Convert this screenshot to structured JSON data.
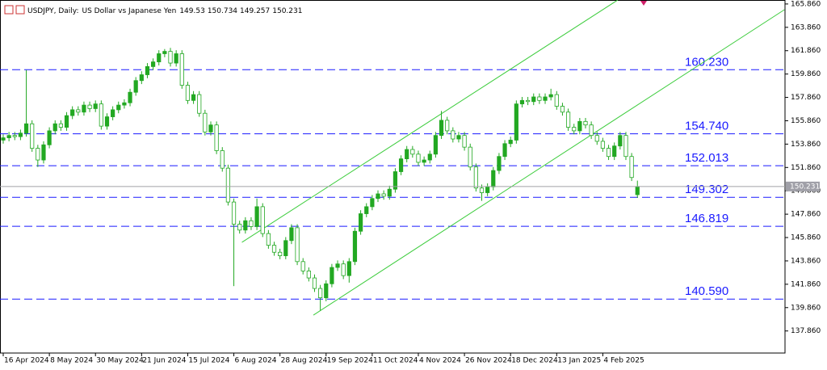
{
  "chart_data": {
    "type": "candlestick",
    "symbol": "USDJPY, Daily:",
    "description": "US Dollar vs Japanese Yen",
    "color": "#22a822",
    "level_color": "#1a1aff",
    "channel_color": "#3ccc3c",
    "price_line_color": "#a0a0a8",
    "xlim": [
      -0.56,
      135.6
    ],
    "ylim": [
      135.97,
      166.2
    ],
    "xticks": [
      {
        "value": 0,
        "label": "16 Apr 2024"
      },
      {
        "value": 8,
        "label": "8 May 2024"
      },
      {
        "value": 16,
        "label": "30 May 2024"
      },
      {
        "value": 24,
        "label": "21 Jun 2024"
      },
      {
        "value": 32,
        "label": "15 Jul 2024"
      },
      {
        "value": 40,
        "label": "6 Aug 2024"
      },
      {
        "value": 48,
        "label": "28 Aug 2024"
      },
      {
        "value": 56,
        "label": "19 Sep 2024"
      },
      {
        "value": 64,
        "label": "11 Oct 2024"
      },
      {
        "value": 72,
        "label": "4 Nov 2024"
      },
      {
        "value": 80,
        "label": "26 Nov 2024"
      },
      {
        "value": 88,
        "label": "18 Dec 2024"
      },
      {
        "value": 96,
        "label": "13 Jan 2025"
      },
      {
        "value": 104,
        "label": "4 Feb 2025"
      }
    ],
    "yticks": [
      {
        "value": 165.86,
        "label": "165.860"
      },
      {
        "value": 163.86,
        "label": "163.860"
      },
      {
        "value": 161.86,
        "label": "161.860"
      },
      {
        "value": 159.86,
        "label": "159.860"
      },
      {
        "value": 157.86,
        "label": "157.860"
      },
      {
        "value": 155.86,
        "label": "155.860"
      },
      {
        "value": 153.86,
        "label": "153.860"
      },
      {
        "value": 151.86,
        "label": "151.860"
      },
      {
        "value": 149.86,
        "label": "149.860"
      },
      {
        "value": 147.86,
        "label": "147.860"
      },
      {
        "value": 145.86,
        "label": "145.860"
      },
      {
        "value": 143.86,
        "label": "143.860"
      },
      {
        "value": 141.86,
        "label": "141.860"
      },
      {
        "value": 139.86,
        "label": "139.860"
      },
      {
        "value": 137.86,
        "label": "137.860"
      }
    ],
    "levels": [
      {
        "value": 160.23,
        "label": "160.230"
      },
      {
        "value": 154.74,
        "label": "154.740"
      },
      152.013,
      149.302,
      146.819,
      {
        "value": 140.59,
        "label": "140.590"
      }
    ],
    "channels": [
      {
        "x": [
          41.4,
          106.6
        ],
        "y": [
          145.45,
          166.2
        ]
      },
      {
        "x": [
          53.8,
          135.5
        ],
        "y": [
          139.22,
          165.37
        ]
      }
    ],
    "open": [
      154.2,
      154.4,
      154.6,
      154.5,
      154.8,
      155.6,
      153.5,
      152.5,
      153.8,
      155.0,
      155.6,
      155.3,
      156.3,
      156.8,
      156.6,
      157.2,
      156.9,
      157.3,
      155.4,
      156.2,
      156.8,
      157.2,
      157.4,
      158.3,
      159.3,
      159.8,
      160.5,
      160.9,
      161.6,
      161.8,
      160.8,
      161.6,
      158.9,
      157.6,
      158.1,
      156.5,
      154.9,
      155.5,
      153.3,
      151.8,
      148.9,
      147.0,
      146.5,
      147.3,
      146.8,
      148.5,
      146.2,
      145.2,
      144.6,
      144.3,
      145.6,
      146.7,
      143.8,
      143.0,
      142.4,
      141.5,
      140.7,
      141.9,
      143.3,
      143.6,
      142.6,
      143.8,
      146.4,
      147.9,
      148.5,
      149.2,
      149.6,
      149.4,
      150.0,
      151.5,
      152.6,
      153.4,
      153.0,
      152.3,
      152.5,
      153.0,
      154.6,
      155.9,
      155.0,
      154.3,
      154.6,
      153.6,
      151.9,
      150.1,
      149.7,
      150.2,
      151.6,
      152.8,
      153.9,
      154.2,
      157.3,
      157.6,
      157.5,
      157.9,
      157.6,
      157.9,
      158.1,
      157.1,
      156.6,
      155.3,
      155.0,
      155.8,
      155.5,
      154.6,
      154.1,
      153.5,
      152.8,
      153.7,
      154.6,
      152.8,
      149.53
    ],
    "high": [
      154.7,
      154.9,
      154.9,
      155.1,
      160.2,
      155.9,
      153.8,
      154.1,
      155.3,
      155.9,
      155.9,
      156.6,
      157.1,
      157.1,
      157.5,
      157.5,
      157.6,
      157.6,
      156.5,
      157.1,
      157.5,
      157.7,
      158.6,
      159.6,
      160.1,
      160.8,
      161.2,
      161.9,
      162.0,
      162.1,
      161.9,
      161.9,
      159.2,
      158.4,
      158.4,
      156.8,
      155.8,
      155.8,
      153.6,
      152.1,
      149.2,
      147.3,
      147.6,
      147.6,
      149.2,
      148.8,
      146.5,
      145.5,
      144.9,
      145.9,
      147.0,
      147.0,
      144.1,
      143.3,
      142.7,
      141.8,
      142.2,
      143.6,
      143.9,
      143.9,
      144.1,
      146.7,
      148.2,
      148.8,
      149.5,
      149.9,
      149.9,
      150.3,
      151.8,
      152.9,
      153.7,
      153.7,
      153.3,
      152.8,
      153.3,
      154.9,
      156.7,
      156.2,
      155.3,
      154.9,
      154.9,
      153.9,
      152.2,
      150.4,
      150.5,
      151.9,
      153.1,
      154.2,
      154.5,
      157.6,
      157.9,
      157.9,
      158.2,
      158.2,
      158.2,
      158.6,
      158.4,
      157.4,
      156.9,
      155.6,
      156.1,
      156.1,
      155.8,
      154.9,
      154.4,
      153.8,
      154.0,
      154.9,
      154.9,
      153.1,
      150.734
    ],
    "low": [
      153.9,
      154.1,
      154.2,
      154.2,
      154.5,
      153.2,
      151.9,
      152.2,
      153.5,
      154.7,
      155.0,
      155.0,
      156.0,
      156.3,
      156.3,
      156.6,
      156.6,
      155.1,
      155.1,
      155.9,
      156.5,
      156.9,
      157.1,
      158.0,
      159.0,
      159.5,
      160.2,
      160.6,
      161.3,
      160.5,
      160.5,
      158.6,
      157.3,
      157.3,
      156.2,
      154.6,
      154.6,
      153.0,
      151.5,
      148.6,
      141.7,
      146.2,
      146.2,
      146.5,
      146.5,
      145.9,
      144.9,
      144.3,
      144.0,
      144.0,
      145.3,
      143.5,
      142.7,
      142.1,
      141.2,
      139.6,
      140.4,
      141.6,
      143.0,
      142.3,
      142.0,
      143.5,
      146.1,
      147.6,
      148.2,
      148.9,
      149.1,
      149.1,
      149.7,
      151.2,
      152.3,
      152.7,
      152.0,
      152.0,
      152.2,
      152.7,
      154.3,
      154.7,
      154.0,
      154.0,
      153.3,
      151.6,
      149.8,
      149.0,
      149.4,
      149.9,
      151.3,
      152.5,
      153.6,
      153.9,
      157.0,
      157.2,
      157.2,
      157.3,
      157.3,
      157.6,
      156.8,
      156.3,
      155.0,
      154.7,
      154.7,
      155.2,
      154.3,
      153.8,
      153.2,
      152.5,
      152.5,
      153.4,
      152.5,
      150.7,
      149.257
    ],
    "close": [
      154.4,
      154.6,
      154.5,
      154.8,
      155.6,
      153.5,
      152.5,
      153.8,
      155.0,
      155.6,
      155.3,
      156.3,
      156.8,
      156.6,
      157.2,
      156.9,
      157.3,
      155.4,
      156.2,
      156.8,
      157.2,
      157.4,
      158.3,
      159.3,
      159.8,
      160.5,
      160.9,
      161.6,
      161.8,
      160.8,
      161.6,
      158.9,
      157.6,
      158.1,
      156.5,
      154.9,
      155.5,
      153.3,
      151.8,
      148.9,
      147.0,
      146.5,
      147.3,
      146.8,
      148.5,
      146.2,
      145.2,
      144.6,
      144.3,
      145.6,
      146.7,
      143.8,
      143.0,
      142.4,
      141.5,
      140.7,
      141.9,
      143.3,
      143.6,
      142.6,
      143.8,
      146.4,
      147.9,
      148.5,
      149.2,
      149.6,
      149.4,
      150.0,
      151.5,
      152.6,
      153.4,
      153.0,
      152.3,
      152.5,
      153.0,
      154.6,
      155.9,
      155.0,
      154.3,
      154.6,
      153.6,
      151.9,
      150.1,
      149.7,
      150.2,
      151.6,
      152.8,
      153.9,
      154.2,
      157.3,
      157.6,
      157.5,
      157.9,
      157.6,
      157.9,
      158.1,
      157.1,
      156.6,
      155.3,
      155.0,
      155.8,
      155.5,
      154.6,
      154.1,
      153.5,
      152.8,
      153.7,
      154.6,
      152.8,
      151.0,
      150.231
    ]
  }
}
